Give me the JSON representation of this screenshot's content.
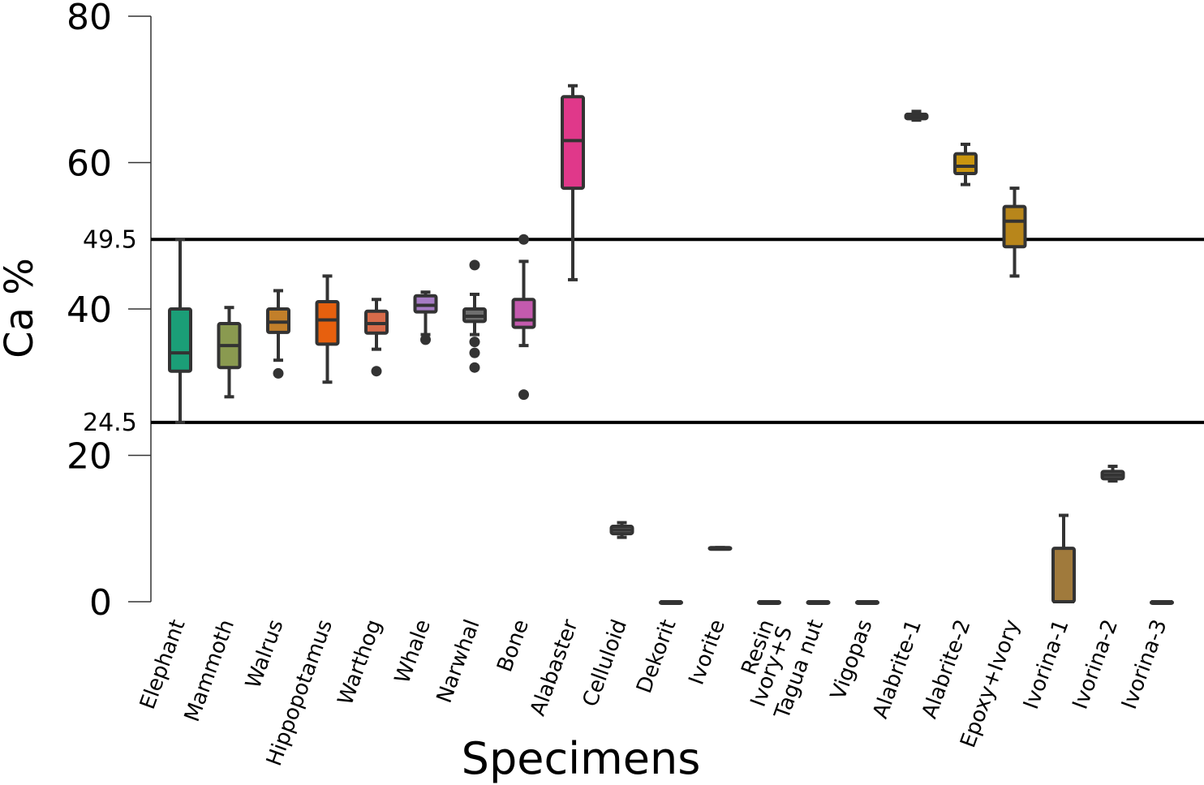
{
  "chart_data": {
    "type": "box",
    "xlabel": "Specimens",
    "ylabel": "Ca %",
    "ylim": [
      0,
      80
    ],
    "yticks": [
      0,
      20,
      40,
      60,
      80
    ],
    "reference_lines": [
      {
        "value": 49.5,
        "label": "49.5"
      },
      {
        "value": 24.5,
        "label": "24.5"
      }
    ],
    "categories": [
      {
        "name": "Elephant",
        "color": "#1b9e77",
        "whisker_low": 24.5,
        "q1": 31.5,
        "median": 34.0,
        "q3": 40.0,
        "whisker_high": 49.5,
        "outliers": []
      },
      {
        "name": "Mammoth",
        "color": "#8a9a50",
        "whisker_low": 28.0,
        "q1": 32.0,
        "median": 35.0,
        "q3": 38.0,
        "whisker_high": 40.2,
        "outliers": []
      },
      {
        "name": "Walrus",
        "color": "#c27f2a",
        "whisker_low": 33.0,
        "q1": 36.8,
        "median": 38.2,
        "q3": 40.0,
        "whisker_high": 42.5,
        "outliers": [
          31.2
        ]
      },
      {
        "name": "Hippopotamus",
        "color": "#e7600e",
        "whisker_low": 30.0,
        "q1": 35.2,
        "median": 38.5,
        "q3": 41.0,
        "whisker_high": 44.5,
        "outliers": []
      },
      {
        "name": "Warthog",
        "color": "#d86b4a",
        "whisker_low": 34.5,
        "q1": 36.7,
        "median": 38.0,
        "q3": 39.7,
        "whisker_high": 41.3,
        "outliers": [
          31.5
        ]
      },
      {
        "name": "Whale",
        "color": "#a67cc4",
        "whisker_low": 36.5,
        "q1": 39.6,
        "median": 40.5,
        "q3": 41.8,
        "whisker_high": 42.3,
        "outliers": [
          35.8
        ]
      },
      {
        "name": "Narwhal",
        "color": "#6e6e6e",
        "whisker_low": 36.5,
        "q1": 38.3,
        "median": 39.0,
        "q3": 40.0,
        "whisker_high": 42.0,
        "outliers": [
          46.0,
          35.5,
          34.0,
          32.0
        ]
      },
      {
        "name": "Bone",
        "color": "#c45aae",
        "whisker_low": 35.0,
        "q1": 37.5,
        "median": 38.5,
        "q3": 41.3,
        "whisker_high": 46.5,
        "outliers": [
          49.5,
          28.3
        ]
      },
      {
        "name": "Alabaster",
        "color": "#e0388a",
        "whisker_low": 44.0,
        "q1": 56.5,
        "median": 63.0,
        "q3": 69.0,
        "whisker_high": 70.5,
        "outliers": []
      },
      {
        "name": "Celluloid",
        "color": "#6e6e6e",
        "whisker_low": 8.8,
        "q1": 9.3,
        "median": 9.8,
        "q3": 10.3,
        "whisker_high": 10.8,
        "outliers": []
      },
      {
        "name": "Dekorit",
        "color": "#6e6e6e",
        "whisker_low": 0,
        "q1": 0,
        "median": 0,
        "q3": 0,
        "whisker_high": 0,
        "outliers": []
      },
      {
        "name": "Ivorite",
        "color": "#6e6e6e",
        "whisker_low": 7.2,
        "q1": 7.2,
        "median": 7.3,
        "q3": 7.4,
        "whisker_high": 7.4,
        "outliers": []
      },
      {
        "name": "Resin\nIvory+S",
        "color": "#6e6e6e",
        "whisker_low": 0,
        "q1": 0,
        "median": 0,
        "q3": 0,
        "whisker_high": 0,
        "outliers": []
      },
      {
        "name": "Tagua nut",
        "color": "#6e6e6e",
        "whisker_low": 0,
        "q1": 0,
        "median": 0,
        "q3": 0,
        "whisker_high": 0,
        "outliers": []
      },
      {
        "name": "Vigopas",
        "color": "#6e6e6e",
        "whisker_low": 0,
        "q1": 0,
        "median": 0,
        "q3": 0,
        "whisker_high": 0,
        "outliers": []
      },
      {
        "name": "Alabrite-1",
        "color": "#6e6e6e",
        "whisker_low": 65.8,
        "q1": 66.0,
        "median": 66.3,
        "q3": 66.6,
        "whisker_high": 67.0,
        "outliers": []
      },
      {
        "name": "Alabrite-2",
        "color": "#c9950f",
        "whisker_low": 57.0,
        "q1": 58.5,
        "median": 59.5,
        "q3": 61.2,
        "whisker_high": 62.5,
        "outliers": []
      },
      {
        "name": "Epoxy+Ivory",
        "color": "#b8861b",
        "whisker_low": 44.5,
        "q1": 48.5,
        "median": 52.0,
        "q3": 54.0,
        "whisker_high": 56.5,
        "outliers": []
      },
      {
        "name": "Ivorina-1",
        "color": "#a07a3c",
        "whisker_low": 0,
        "q1": 0,
        "median": 0,
        "q3": 7.3,
        "whisker_high": 11.8,
        "outliers": []
      },
      {
        "name": "Ivorina-2",
        "color": "#6e6e6e",
        "whisker_low": 16.5,
        "q1": 16.8,
        "median": 17.3,
        "q3": 17.8,
        "whisker_high": 18.5,
        "outliers": []
      },
      {
        "name": "Ivorina-3",
        "color": "#6e6e6e",
        "whisker_low": 0,
        "q1": 0,
        "median": 0,
        "q3": 0,
        "whisker_high": 0,
        "outliers": []
      }
    ]
  }
}
